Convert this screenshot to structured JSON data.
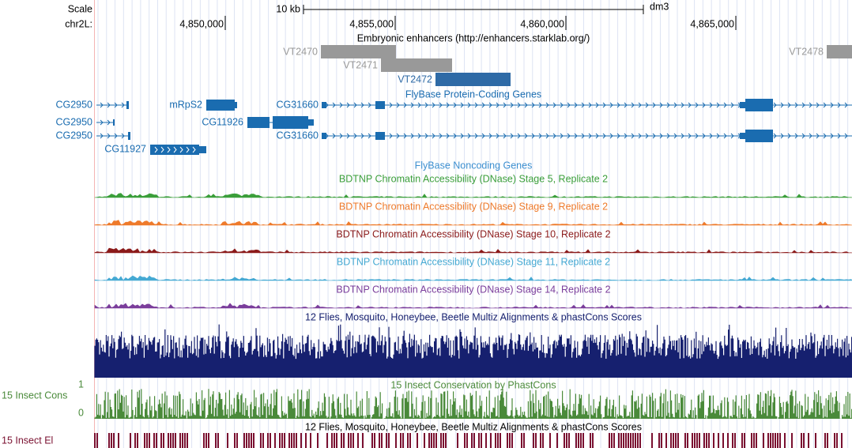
{
  "scale": {
    "label": "Scale",
    "size": "10 kb",
    "assembly": "dm3"
  },
  "ruler": {
    "chrom": "chr2L:",
    "ticks": [
      "4,850,000",
      "4,855,000",
      "4,860,000",
      "4,865,000"
    ]
  },
  "enhancers": {
    "title": "Embryonic enhancers (http://enhancers.starklab.org/)",
    "items": [
      "VT2470",
      "VT2471",
      "VT2472",
      "VT2478"
    ]
  },
  "protein_genes": {
    "title": "FlyBase Protein-Coding Genes",
    "labels": [
      "CG2950",
      "mRpS2",
      "CG31660",
      "CG2950",
      "CG11926",
      "CG2950",
      "CG31660",
      "CG11927"
    ]
  },
  "noncoding_genes": {
    "title": "FlyBase Noncoding Genes"
  },
  "dnase_tracks": [
    "BDTNP Chromatin Accessibility (DNase) Stage 5, Replicate 2",
    "BDTNP Chromatin Accessibility (DNase) Stage 9, Replicate 2",
    "BDTNP Chromatin Accessibility (DNase) Stage 10, Replicate 2",
    "BDTNP Chromatin Accessibility (DNase) Stage 11, Replicate 2",
    "BDTNP Chromatin Accessibility (DNase) Stage 14, Replicate 2"
  ],
  "multiz": {
    "title": "12 Flies, Mosquito, Honeybee, Beetle Multiz Alignments & phastCons Scores"
  },
  "cons": {
    "title": "15 Insect Conservation by PhastCons",
    "side_label": "15 Insect Cons",
    "max": "1",
    "min": "0"
  },
  "elements": {
    "title": "12 Flies, Mosquito, Honeybee, Beetle Multiz Alignments & phastCons Scores",
    "side_label": "15 Insect El"
  }
}
